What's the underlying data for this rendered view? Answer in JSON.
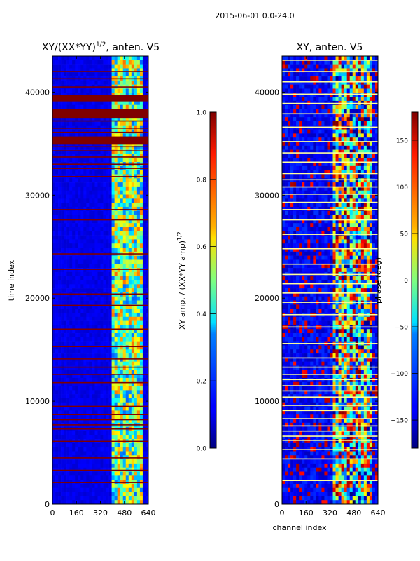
{
  "figure": {
    "suptitle": "2015-06-01 0.0-24.0"
  },
  "chart_data": [
    {
      "type": "heatmap",
      "title": "XY/(XX*YY)^1/2, anten. V5",
      "title_parts": {
        "base": "XY/(XX*YY)",
        "exp": "1/2",
        "suffix": ", anten. V5"
      },
      "xlabel": "",
      "ylabel": "time index",
      "xlim": [
        0,
        640
      ],
      "ylim": [
        0,
        43500
      ],
      "xticks": [
        0,
        160,
        320,
        480,
        640
      ],
      "yticks": [
        0,
        10000,
        20000,
        30000,
        40000
      ],
      "background_value": 0.08,
      "bright_band_channels": [
        400,
        600
      ],
      "colorbar": {
        "label_base": "XY amp. / (XX*YY amp)",
        "label_exp": "1/2",
        "range": [
          0.0,
          1.0
        ],
        "ticks": [
          0.0,
          0.2,
          0.4,
          0.6,
          0.8,
          1.0
        ]
      },
      "flagged_time_rows": [
        2100,
        3300,
        4500,
        6100,
        7300,
        7700,
        8200,
        8700,
        9500,
        11800,
        12600,
        13300,
        14100,
        15300,
        17000,
        19300,
        20400,
        22800,
        24300,
        27600,
        28600,
        31800,
        32600,
        33000,
        33700,
        34300,
        34700,
        35000,
        35400,
        36100,
        36500,
        37200,
        37600,
        37900,
        38300,
        40500,
        41300,
        42000
      ],
      "flagged_time_blocks": [
        [
          34900,
          35700
        ],
        [
          37500,
          38300
        ],
        [
          39100,
          39700
        ]
      ]
    },
    {
      "type": "heatmap",
      "title": "XY, anten. V5",
      "xlabel": "channel index",
      "ylabel": "",
      "xlim": [
        0,
        640
      ],
      "ylim": [
        0,
        43500
      ],
      "xticks": [
        0,
        160,
        320,
        480,
        640
      ],
      "yticks": [
        0,
        10000,
        20000,
        30000,
        40000
      ],
      "colorbar": {
        "label": "phase (deg)",
        "range": [
          -180,
          180
        ],
        "ticks": [
          -150,
          -100,
          -50,
          0,
          50,
          100,
          150
        ]
      },
      "flagged_time_rows": [
        2300,
        4400,
        5300,
        6200,
        6600,
        7100,
        7600,
        8300,
        9100,
        9600,
        10400,
        11000,
        11500,
        12100,
        12600,
        13300,
        14200,
        15600,
        17200,
        18400,
        19600,
        20500,
        21400,
        22300,
        23300,
        24800,
        26200,
        27600,
        28600,
        29300,
        30100,
        30800,
        31500,
        32100,
        33200,
        34100,
        35200,
        36600,
        37900,
        38900,
        39800,
        41000,
        42000,
        43100
      ]
    }
  ]
}
